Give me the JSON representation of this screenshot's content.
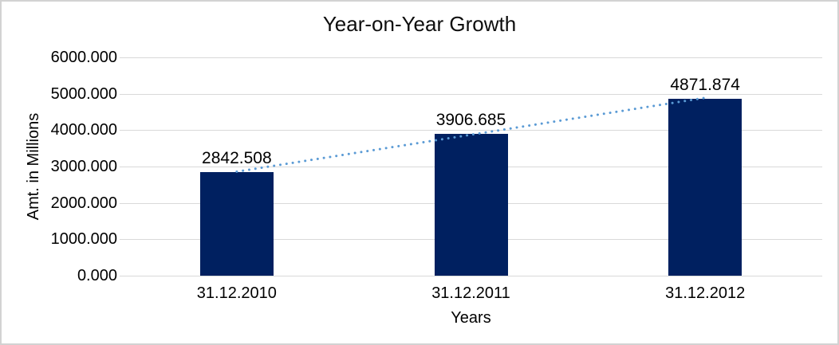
{
  "chart_data": {
    "type": "bar",
    "title": "Year-on-Year Growth",
    "xlabel": "Years",
    "ylabel": "Amt. in Millions",
    "categories": [
      "31.12.2010",
      "31.12.2011",
      "31.12.2012"
    ],
    "values": [
      2842.508,
      3906.685,
      4871.874
    ],
    "value_labels": [
      "2842.508",
      "3906.685",
      "4871.874"
    ],
    "ylim": [
      0,
      6000
    ],
    "ytick_step": 1000,
    "ytick_labels": [
      "6000.000",
      "5000.000",
      "4000.000",
      "3000.000",
      "2000.000",
      "1000.000",
      "0.000"
    ],
    "grid": true,
    "legend": "none",
    "trendline": {
      "type": "linear",
      "style": "dotted"
    },
    "colors": {
      "bar": "#002060",
      "trendline": "#5b9bd5",
      "gridline": "#d9d9d9",
      "text": "#000000",
      "chart_border": "#d2d2d2",
      "background": "#ffffff"
    }
  }
}
